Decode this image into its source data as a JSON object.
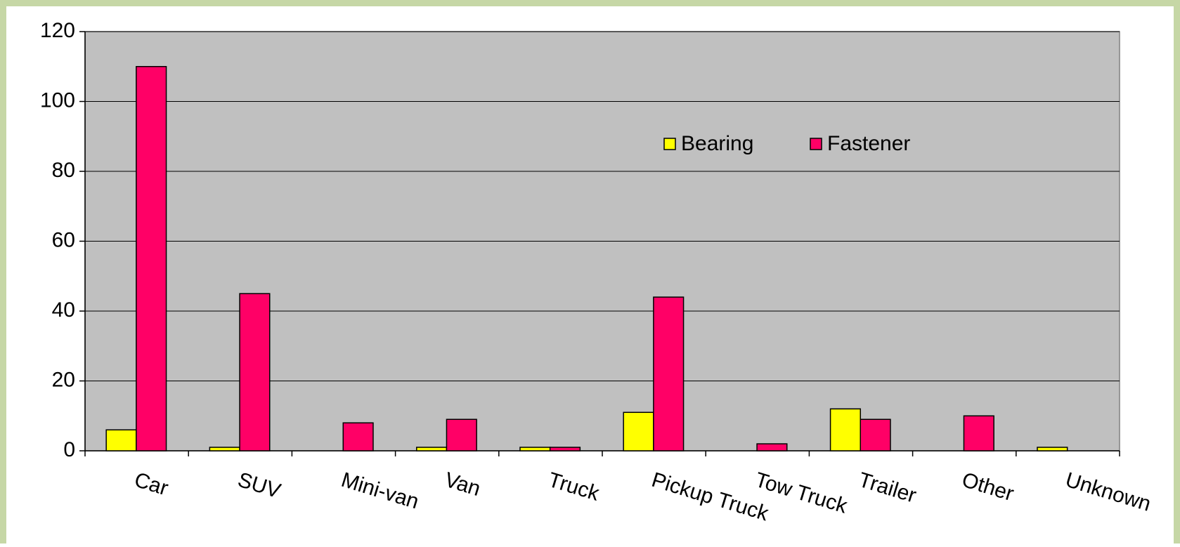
{
  "chart_data": {
    "type": "bar",
    "categories": [
      "Car",
      "SUV",
      "Mini-van",
      "Van",
      "Truck",
      "Pickup Truck",
      "Tow Truck",
      "Trailer",
      "Other",
      "Unknown"
    ],
    "series": [
      {
        "name": "Bearing",
        "color": "#ffff00",
        "values": [
          6,
          1,
          0,
          1,
          1,
          11,
          0,
          12,
          0,
          1
        ]
      },
      {
        "name": "Fastener",
        "color": "#ff0066",
        "values": [
          110,
          45,
          8,
          9,
          1,
          44,
          2,
          9,
          10,
          0
        ]
      }
    ],
    "ylim": [
      0,
      120
    ],
    "yticks": [
      0,
      20,
      40,
      60,
      80,
      100,
      120
    ],
    "grid": true,
    "legend": "top-right"
  }
}
